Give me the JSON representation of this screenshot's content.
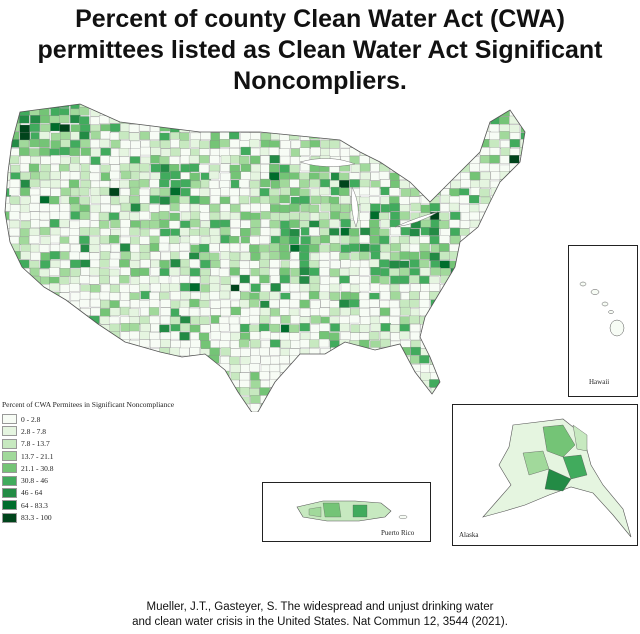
{
  "title": {
    "line1": "Percent of county Clean Water Act (CWA)",
    "line2": "permittees listed as Clean Water Act Significant",
    "line3": "Noncompliers."
  },
  "legend": {
    "title": "Percent of CWA Permitees in Significant Noncompliance",
    "items": [
      {
        "label": "0 - 2.8",
        "color": "#f7fcf5"
      },
      {
        "label": "2.8 - 7.8",
        "color": "#e5f5e0"
      },
      {
        "label": "7.8 - 13.7",
        "color": "#c7e9c0"
      },
      {
        "label": "13.7 - 21.1",
        "color": "#a1d99b"
      },
      {
        "label": "21.1 - 30.8",
        "color": "#74c476"
      },
      {
        "label": "30.8 - 46",
        "color": "#41ab5d"
      },
      {
        "label": "46 - 64",
        "color": "#238b45"
      },
      {
        "label": "64 - 83.3",
        "color": "#006d2c"
      },
      {
        "label": "83.3 - 100",
        "color": "#00441b"
      }
    ]
  },
  "insets": {
    "hawaii": "Hawaii",
    "alaska": "Alaska",
    "puerto_rico": "Puerto Rico"
  },
  "citation": {
    "line1": "Mueller, J.T., Gasteyer, S. The widespread and unjust drinking water",
    "line2": "and clean water crisis in the United States. Nat Commun 12, 3544 (2021)."
  }
}
